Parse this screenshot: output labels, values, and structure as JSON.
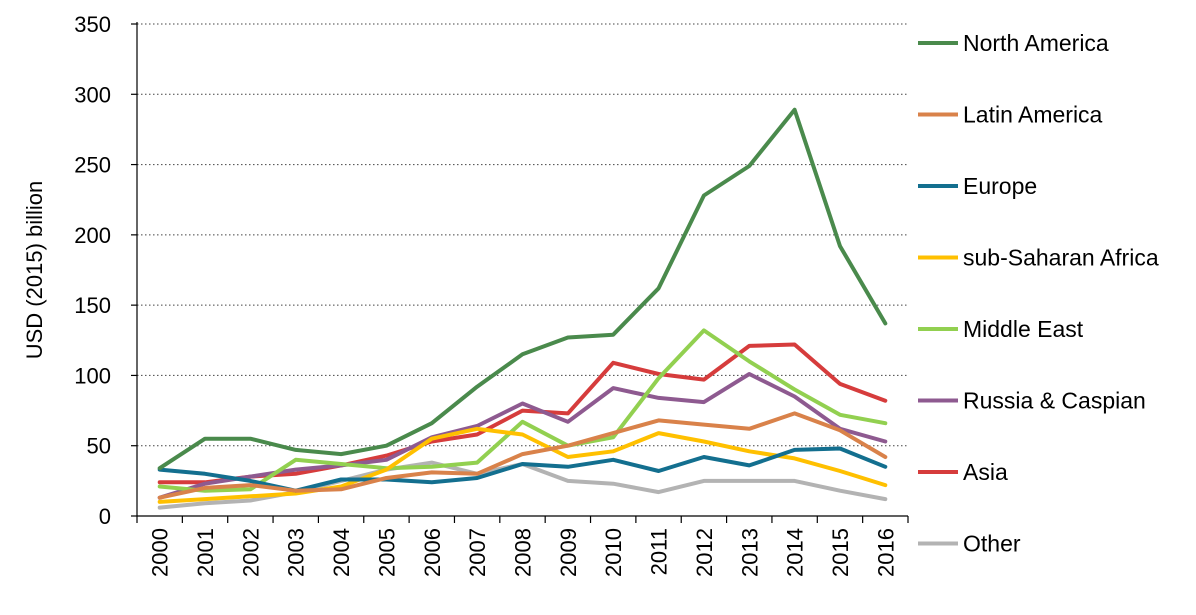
{
  "chart_data": {
    "type": "line",
    "title": "",
    "xlabel": "",
    "ylabel": "USD (2015) billion",
    "ylim": [
      0,
      350
    ],
    "yticks": [
      0,
      50,
      100,
      150,
      200,
      250,
      300,
      350
    ],
    "grid": "horizontal dotted",
    "legend_position": "right",
    "categories": [
      "2000",
      "2001",
      "2002",
      "2003",
      "2004",
      "2005",
      "2006",
      "2007",
      "2008",
      "2009",
      "2010",
      "2011",
      "2012",
      "2013",
      "2014",
      "2015",
      "2016"
    ],
    "series": [
      {
        "name": "North America",
        "color": "#4a8a4c",
        "values": [
          34,
          55,
          55,
          47,
          44,
          50,
          66,
          92,
          115,
          127,
          129,
          162,
          228,
          249,
          289,
          192,
          137
        ]
      },
      {
        "name": "Latin America",
        "color": "#d9824a",
        "values": [
          13,
          20,
          22,
          18,
          19,
          27,
          31,
          30,
          44,
          50,
          59,
          68,
          65,
          62,
          73,
          61,
          42
        ]
      },
      {
        "name": "Europe",
        "color": "#136f8f",
        "values": [
          33,
          30,
          25,
          18,
          26,
          26,
          24,
          27,
          37,
          35,
          40,
          32,
          42,
          36,
          47,
          48,
          35
        ]
      },
      {
        "name": "sub-Saharan Africa",
        "color": "#ffc000",
        "values": [
          10,
          12,
          14,
          16,
          21,
          33,
          55,
          62,
          58,
          42,
          46,
          59,
          53,
          46,
          41,
          32,
          22
        ]
      },
      {
        "name": "Middle East",
        "color": "#92d050",
        "values": [
          21,
          18,
          19,
          40,
          37,
          34,
          35,
          38,
          67,
          50,
          56,
          98,
          132,
          110,
          90,
          72,
          66
        ]
      },
      {
        "name": "Russia & Caspian",
        "color": "#8e5a90",
        "values": [
          13,
          23,
          28,
          33,
          36,
          40,
          56,
          64,
          80,
          67,
          91,
          84,
          81,
          101,
          85,
          62,
          53
        ]
      },
      {
        "name": "Asia",
        "color": "#d63c3c",
        "values": [
          24,
          24,
          28,
          30,
          36,
          43,
          53,
          58,
          75,
          73,
          109,
          101,
          97,
          121,
          122,
          94,
          82
        ]
      },
      {
        "name": "Other",
        "color": "#b3b3b3",
        "values": [
          6,
          9,
          11,
          17,
          25,
          33,
          38,
          30,
          37,
          25,
          23,
          17,
          25,
          25,
          25,
          18,
          12
        ]
      }
    ]
  }
}
